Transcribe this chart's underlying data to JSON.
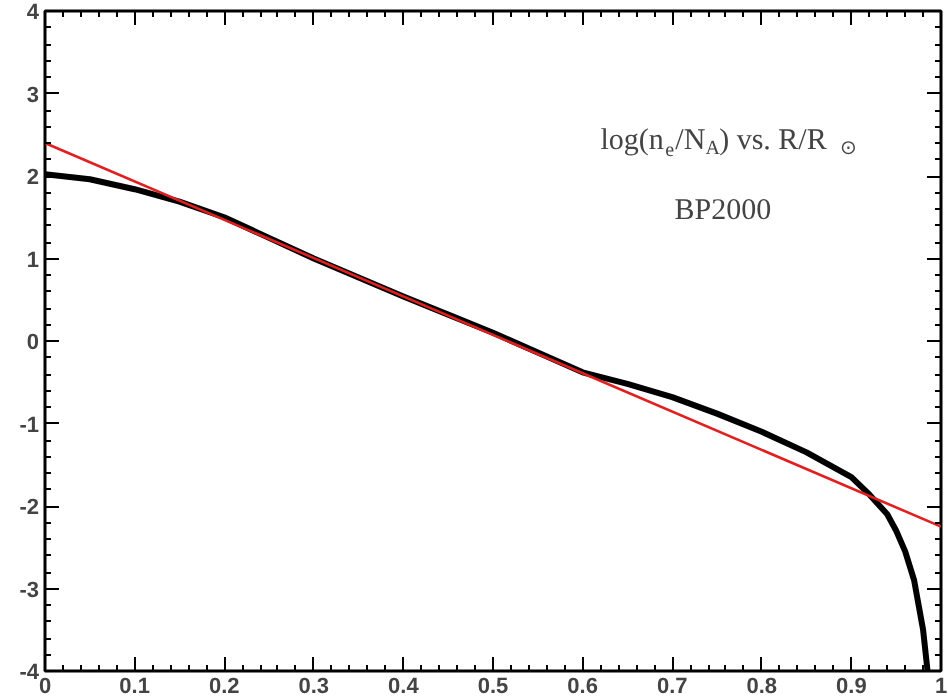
{
  "chart_data": {
    "type": "line",
    "annotations": [
      "log(n$_{e}$/N$_{A}$) vs. R/R$_{⊙}$",
      "BP2000"
    ],
    "xlim": [
      0,
      1
    ],
    "ylim": [
      -4,
      4
    ],
    "xticks": [
      0,
      0.1,
      0.2,
      0.3,
      0.4,
      0.5,
      0.6,
      0.7,
      0.8,
      0.9,
      1
    ],
    "yticks": [
      -4,
      -3,
      -2,
      -1,
      0,
      1,
      2,
      3,
      4
    ],
    "grid": false,
    "marker": "none",
    "line_style": "solid",
    "series": [
      {
        "color": "#000000",
        "x": [
          0,
          0.05,
          0.1,
          0.15,
          0.2,
          0.25,
          0.3,
          0.35,
          0.4,
          0.45,
          0.5,
          0.55,
          0.6,
          0.65,
          0.7,
          0.75,
          0.8,
          0.85,
          0.9,
          0.92,
          0.94,
          0.95,
          0.96,
          0.97,
          0.975,
          0.98,
          0.985
        ],
        "values": [
          2.02,
          1.96,
          1.84,
          1.69,
          1.5,
          1.25,
          1.0,
          0.77,
          0.54,
          0.32,
          0.1,
          -0.14,
          -0.38,
          -0.52,
          -0.68,
          -0.88,
          -1.1,
          -1.35,
          -1.65,
          -1.86,
          -2.1,
          -2.3,
          -2.55,
          -2.9,
          -3.2,
          -3.5,
          -4.0
        ]
      },
      {
        "color": "#e02020",
        "x": [
          0,
          1
        ],
        "values": [
          2.4,
          -2.25
        ]
      }
    ]
  }
}
